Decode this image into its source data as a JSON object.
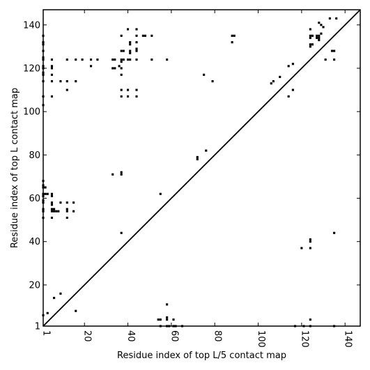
{
  "chart_data": {
    "type": "heatmap",
    "title": "",
    "xlabel": "Residue index of top L/5 contact map",
    "ylabel": "Residue index of top L contact map",
    "xlim": [
      1,
      147
    ],
    "ylim": [
      1,
      147
    ],
    "x_ticks": [
      1,
      20,
      40,
      60,
      80,
      100,
      120,
      140
    ],
    "y_ticks": [
      1,
      20,
      40,
      60,
      80,
      100,
      120,
      140
    ],
    "diagonal": true,
    "grid": false,
    "mark_color": "#000000",
    "upper_contacts": [
      [
        1,
        135
      ],
      [
        1,
        132
      ],
      [
        1,
        131
      ],
      [
        1,
        128
      ],
      [
        1,
        125
      ],
      [
        1,
        124
      ],
      [
        1,
        121
      ],
      [
        1,
        120
      ],
      [
        1,
        118
      ],
      [
        1,
        117
      ],
      [
        1,
        114
      ],
      [
        1,
        107
      ],
      [
        1,
        103
      ],
      [
        5,
        124
      ],
      [
        5,
        121
      ],
      [
        5,
        120
      ],
      [
        5,
        117
      ],
      [
        5,
        114
      ],
      [
        5,
        107
      ],
      [
        9,
        114
      ],
      [
        12,
        124
      ],
      [
        12,
        114
      ],
      [
        12,
        110
      ],
      [
        16,
        124
      ],
      [
        16,
        114
      ],
      [
        19,
        124
      ],
      [
        23,
        124
      ],
      [
        23,
        121
      ],
      [
        26,
        124
      ],
      [
        33,
        124
      ],
      [
        33,
        120
      ],
      [
        34,
        124
      ],
      [
        34,
        120
      ],
      [
        36,
        121
      ],
      [
        37,
        135
      ],
      [
        37,
        128
      ],
      [
        37,
        124
      ],
      [
        37,
        123
      ],
      [
        37,
        120
      ],
      [
        37,
        117
      ],
      [
        37,
        110
      ],
      [
        37,
        107
      ],
      [
        38,
        128
      ],
      [
        38,
        124
      ],
      [
        40,
        138
      ],
      [
        40,
        124
      ],
      [
        40,
        110
      ],
      [
        40,
        107
      ],
      [
        41,
        132
      ],
      [
        41,
        131
      ],
      [
        41,
        128
      ],
      [
        41,
        127
      ],
      [
        41,
        124
      ],
      [
        44,
        138
      ],
      [
        44,
        135
      ],
      [
        44,
        132
      ],
      [
        44,
        129
      ],
      [
        44,
        128
      ],
      [
        44,
        124
      ],
      [
        44,
        110
      ],
      [
        44,
        107
      ],
      [
        47,
        135
      ],
      [
        48,
        135
      ],
      [
        51,
        135
      ],
      [
        51,
        124
      ],
      [
        58,
        124
      ],
      [
        75,
        117
      ],
      [
        79,
        114
      ],
      [
        88,
        135
      ],
      [
        89,
        135
      ],
      [
        88,
        132
      ],
      [
        106,
        113
      ],
      [
        107,
        114
      ],
      [
        110,
        116
      ],
      [
        114,
        121
      ],
      [
        116,
        122
      ],
      [
        114,
        107
      ],
      [
        116,
        110
      ],
      [
        124,
        138
      ],
      [
        124,
        135
      ],
      [
        124,
        134
      ],
      [
        124,
        131
      ],
      [
        124,
        130
      ],
      [
        125,
        135
      ],
      [
        125,
        131
      ],
      [
        127,
        135
      ],
      [
        127,
        134
      ],
      [
        128,
        135
      ],
      [
        128,
        134
      ],
      [
        128,
        133
      ],
      [
        128,
        141
      ],
      [
        129,
        140
      ],
      [
        129,
        136
      ],
      [
        130,
        139
      ],
      [
        131,
        124
      ],
      [
        133,
        143
      ],
      [
        134,
        128
      ],
      [
        135,
        128
      ],
      [
        135,
        124
      ],
      [
        136,
        143
      ]
    ],
    "lower_contacts": [
      [
        3,
        7
      ],
      [
        1,
        6
      ],
      [
        9,
        16
      ],
      [
        6,
        14
      ],
      [
        16,
        8
      ],
      [
        1,
        68
      ],
      [
        1,
        66
      ],
      [
        1,
        65
      ],
      [
        2,
        65
      ],
      [
        1,
        62
      ],
      [
        2,
        62
      ],
      [
        1,
        61
      ],
      [
        1,
        59
      ],
      [
        1,
        58
      ],
      [
        1,
        55
      ],
      [
        1,
        54
      ],
      [
        1,
        51
      ],
      [
        3,
        62
      ],
      [
        5,
        62
      ],
      [
        5,
        61
      ],
      [
        5,
        58
      ],
      [
        5,
        57
      ],
      [
        5,
        55
      ],
      [
        5,
        54
      ],
      [
        6,
        55
      ],
      [
        6,
        54
      ],
      [
        7,
        54
      ],
      [
        8,
        54
      ],
      [
        9,
        58
      ],
      [
        5,
        51
      ],
      [
        12,
        58
      ],
      [
        12,
        55
      ],
      [
        12,
        54
      ],
      [
        12,
        51
      ],
      [
        15,
        58
      ],
      [
        15,
        54
      ],
      [
        33,
        71
      ],
      [
        37,
        72
      ],
      [
        37,
        71
      ],
      [
        37,
        44
      ],
      [
        55,
        62
      ],
      [
        72,
        79
      ],
      [
        72,
        78
      ],
      [
        76,
        82
      ],
      [
        54,
        4
      ],
      [
        55,
        4
      ],
      [
        58,
        5
      ],
      [
        58,
        4
      ],
      [
        58,
        11
      ],
      [
        61,
        4
      ],
      [
        55,
        1
      ],
      [
        58,
        1
      ],
      [
        59,
        1
      ],
      [
        61,
        1
      ],
      [
        62,
        1
      ],
      [
        65,
        1
      ],
      [
        117,
        1
      ],
      [
        120,
        37
      ],
      [
        121,
        1
      ],
      [
        124,
        41
      ],
      [
        124,
        40
      ],
      [
        124,
        37
      ],
      [
        124,
        4
      ],
      [
        124,
        1
      ],
      [
        135,
        44
      ],
      [
        135,
        1
      ]
    ]
  }
}
